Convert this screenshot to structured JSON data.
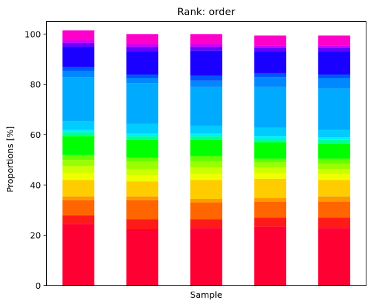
{
  "chart_data": {
    "type": "bar",
    "stacked": true,
    "title": "Rank: order",
    "xlabel": "Sample",
    "ylabel": "Proportions [%]",
    "ylim": [
      0,
      105
    ],
    "yticks": [
      0,
      20,
      40,
      60,
      80,
      100
    ],
    "grid": false,
    "legend": "none",
    "bar_count": 5,
    "series": [
      {
        "color": "#ff0033",
        "values": [
          24.5,
          22.5,
          23.0,
          23.5,
          23.0
        ]
      },
      {
        "color": "#ff1a1a",
        "values": [
          3.5,
          4.0,
          3.5,
          3.5,
          4.0
        ]
      },
      {
        "color": "#ff6600",
        "values": [
          6.0,
          7.5,
          6.5,
          6.5,
          6.5
        ]
      },
      {
        "color": "#ff9900",
        "values": [
          1.5,
          1.5,
          1.5,
          1.5,
          2.0
        ]
      },
      {
        "color": "#ffcc00",
        "values": [
          6.5,
          6.0,
          7.5,
          7.5,
          6.5
        ]
      },
      {
        "color": "#eeff00",
        "values": [
          3.0,
          2.5,
          2.5,
          2.5,
          2.5
        ]
      },
      {
        "color": "#ccff00",
        "values": [
          2.5,
          2.5,
          2.5,
          2.0,
          2.0
        ]
      },
      {
        "color": "#99ff00",
        "values": [
          2.5,
          3.0,
          2.5,
          2.0,
          2.0
        ]
      },
      {
        "color": "#66ff00",
        "values": [
          2.0,
          1.5,
          2.0,
          1.5,
          2.0
        ]
      },
      {
        "color": "#00ff00",
        "values": [
          7.5,
          7.0,
          6.5,
          6.5,
          6.0
        ]
      },
      {
        "color": "#00ff99",
        "values": [
          1.5,
          1.5,
          1.5,
          1.5,
          1.5
        ]
      },
      {
        "color": "#00eeff",
        "values": [
          1.0,
          1.0,
          1.0,
          1.0,
          1.0
        ]
      },
      {
        "color": "#00ccff",
        "values": [
          3.5,
          4.0,
          3.0,
          3.5,
          3.0
        ]
      },
      {
        "color": "#00aaff",
        "values": [
          17.5,
          16.0,
          15.5,
          16.0,
          16.5
        ]
      },
      {
        "color": "#0088ff",
        "values": [
          2.5,
          2.0,
          2.5,
          4.0,
          4.0
        ]
      },
      {
        "color": "#0055ff",
        "values": [
          1.5,
          1.5,
          2.0,
          1.5,
          1.5
        ]
      },
      {
        "color": "#1a00ff",
        "values": [
          8.0,
          9.0,
          10.0,
          8.5,
          9.0
        ]
      },
      {
        "color": "#6600ff",
        "values": [
          1.5,
          2.0,
          1.5,
          1.5,
          1.5
        ]
      },
      {
        "color": "#cc00ff",
        "values": [
          1.0,
          1.0,
          1.0,
          1.0,
          1.0
        ]
      },
      {
        "color": "#ff00cc",
        "values": [
          4.0,
          4.0,
          4.0,
          4.0,
          4.0
        ]
      }
    ]
  }
}
